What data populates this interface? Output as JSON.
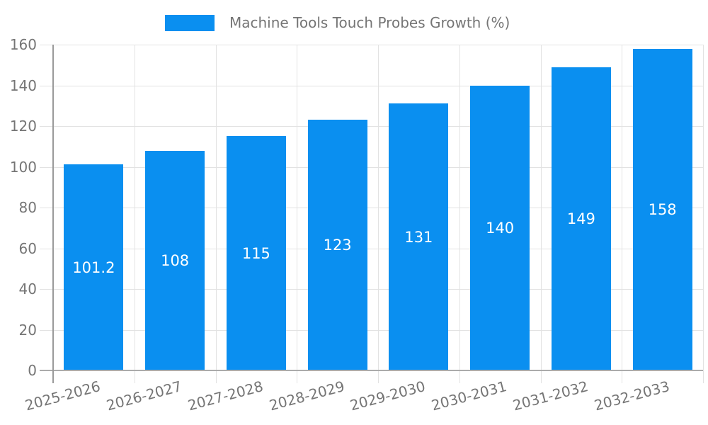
{
  "legend": {
    "label": "Machine Tools Touch Probes Growth (%)"
  },
  "chart_data": {
    "type": "bar",
    "title": "Machine Tools Touch Probes Growth (%)",
    "categories": [
      "2025-2026",
      "2026-2027",
      "2027-2028",
      "2028-2029",
      "2029-2030",
      "2030-2031",
      "2031-2032",
      "2032-2033"
    ],
    "series": [
      {
        "name": "Machine Tools Touch Probes Growth (%)",
        "values": [
          101.2,
          108,
          115,
          123,
          131,
          140,
          149,
          158
        ],
        "value_labels": [
          "101.2",
          "108",
          "115",
          "123",
          "131",
          "140",
          "149",
          "158"
        ]
      }
    ],
    "xlabel": "",
    "ylabel": "",
    "ylim": [
      0,
      160
    ],
    "yticks": [
      0,
      20,
      40,
      60,
      80,
      100,
      120,
      140,
      160
    ],
    "grid": true,
    "legend_position": "top-center",
    "value_labels_inside_bars": true,
    "x_label_rotation_deg": -15,
    "colors": {
      "bar": "#0a8ff0",
      "grid": "#e2e2e2",
      "axis": "#a0a0a0",
      "tick_label": "#757575",
      "value_label": "#ffffff",
      "background": "#ffffff"
    }
  }
}
